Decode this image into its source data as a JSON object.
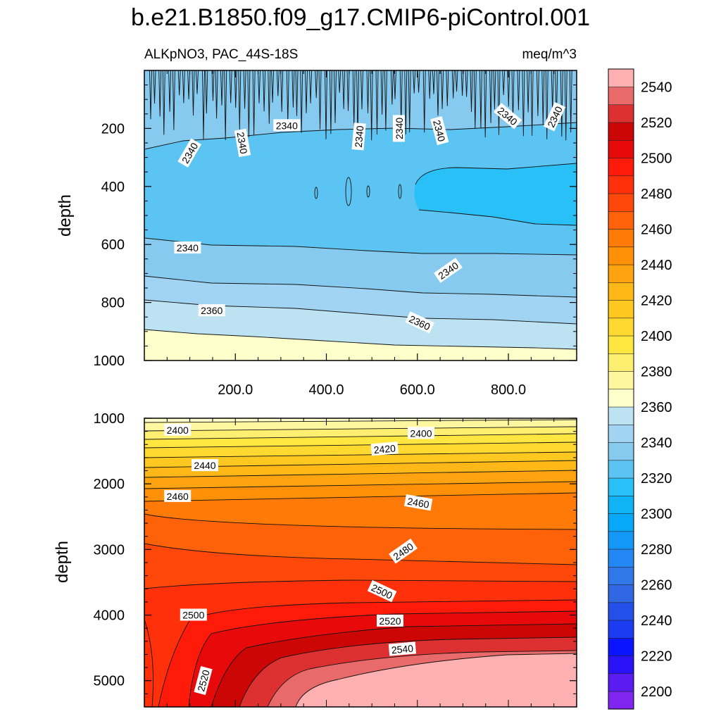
{
  "figure": {
    "title": "b.e21.B1850.f09_g17.CMIP6-piControl.001",
    "left_subtitle": "ALKpNO3, PAC_44S-18S",
    "right_subtitle": "meq/m^3"
  },
  "chart_data": [
    {
      "type": "contour",
      "panel": "upper",
      "title": "",
      "xlabel": "",
      "ylabel": "depth",
      "xlim": [
        0,
        950
      ],
      "ylim": [
        1000,
        0
      ],
      "x_ticks": [
        200,
        400,
        600,
        800
      ],
      "x_tick_labels": [
        "200.0",
        "400.0",
        "600.0",
        "800.0"
      ],
      "y_ticks": [
        200,
        400,
        600,
        800,
        1000
      ],
      "y_tick_labels": [
        "200",
        "400",
        "600",
        "800",
        "1000"
      ],
      "contour_labels": [
        {
          "text": "2340",
          "x": 100,
          "y": 285,
          "angle": -60
        },
        {
          "text": "2340",
          "x": 215,
          "y": 250,
          "angle": 80
        },
        {
          "text": "2340",
          "x": 313,
          "y": 190,
          "angle": 0
        },
        {
          "text": "2340",
          "x": 472,
          "y": 228,
          "angle": -85
        },
        {
          "text": "2340",
          "x": 560,
          "y": 200,
          "angle": -90
        },
        {
          "text": "2340",
          "x": 648,
          "y": 208,
          "angle": 75
        },
        {
          "text": "2340",
          "x": 798,
          "y": 158,
          "angle": 40
        },
        {
          "text": "2340",
          "x": 902,
          "y": 160,
          "angle": -65
        },
        {
          "text": "2340",
          "x": 95,
          "y": 612,
          "angle": 0
        },
        {
          "text": "2340",
          "x": 668,
          "y": 690,
          "angle": -35
        },
        {
          "text": "2360",
          "x": 148,
          "y": 828,
          "angle": 0
        },
        {
          "text": "2360",
          "x": 605,
          "y": 870,
          "angle": 25
        }
      ]
    },
    {
      "type": "contour",
      "panel": "lower",
      "title": "",
      "xlabel": "",
      "ylabel": "depth",
      "xlim": [
        0,
        950
      ],
      "ylim": [
        5400,
        1000
      ],
      "y_ticks": [
        1000,
        2000,
        3000,
        4000,
        5000
      ],
      "y_tick_labels": [
        "1000",
        "2000",
        "3000",
        "4000",
        "5000"
      ],
      "contour_labels": [
        {
          "text": "2400",
          "x": 73,
          "y": 1180,
          "angle": 0
        },
        {
          "text": "2400",
          "x": 608,
          "y": 1230,
          "angle": 0
        },
        {
          "text": "2420",
          "x": 528,
          "y": 1470,
          "angle": -5
        },
        {
          "text": "2440",
          "x": 133,
          "y": 1720,
          "angle": 0
        },
        {
          "text": "2460",
          "x": 73,
          "y": 2190,
          "angle": 0
        },
        {
          "text": "2460",
          "x": 602,
          "y": 2290,
          "angle": 10
        },
        {
          "text": "2480",
          "x": 569,
          "y": 3030,
          "angle": -35
        },
        {
          "text": "2500",
          "x": 522,
          "y": 3640,
          "angle": 25
        },
        {
          "text": "2500",
          "x": 108,
          "y": 4000,
          "angle": 0
        },
        {
          "text": "2520",
          "x": 540,
          "y": 4090,
          "angle": 0
        },
        {
          "text": "2520",
          "x": 130,
          "y": 5000,
          "angle": -75
        },
        {
          "text": "2540",
          "x": 567,
          "y": 4520,
          "angle": -5
        }
      ]
    },
    {
      "type": "colorbar",
      "levels": [
        2200,
        2210,
        2220,
        2230,
        2240,
        2250,
        2260,
        2270,
        2280,
        2290,
        2300,
        2310,
        2320,
        2330,
        2340,
        2350,
        2360,
        2370,
        2380,
        2390,
        2400,
        2410,
        2420,
        2430,
        2440,
        2450,
        2460,
        2470,
        2480,
        2490,
        2500,
        2510,
        2520,
        2530,
        2540,
        2550
      ],
      "tick_labels": [
        "2200",
        "2220",
        "2240",
        "2260",
        "2280",
        "2300",
        "2320",
        "2340",
        "2360",
        "2380",
        "2400",
        "2420",
        "2440",
        "2460",
        "2480",
        "2500",
        "2520",
        "2540"
      ],
      "colors": [
        "#8024f0",
        "#5a1cf0",
        "#2a12f6",
        "#0a14ff",
        "#1c3cf2",
        "#2250e8",
        "#3068e4",
        "#3078ea",
        "#2488f4",
        "#1498f8",
        "#08a8f8",
        "#10b4f6",
        "#28c0f6",
        "#5cc4f2",
        "#86cbef",
        "#a0d4f2",
        "#bde2f2",
        "#ffffcc",
        "#fff6a0",
        "#ffef70",
        "#ffe640",
        "#ffd830",
        "#ffc820",
        "#ffb818",
        "#ffa410",
        "#ff9008",
        "#ff7a06",
        "#ff6208",
        "#ff480a",
        "#ff300a",
        "#ff1a0a",
        "#e80a0a",
        "#cc0505",
        "#dd3030",
        "#e86a6a",
        "#ffb0b0"
      ]
    }
  ]
}
